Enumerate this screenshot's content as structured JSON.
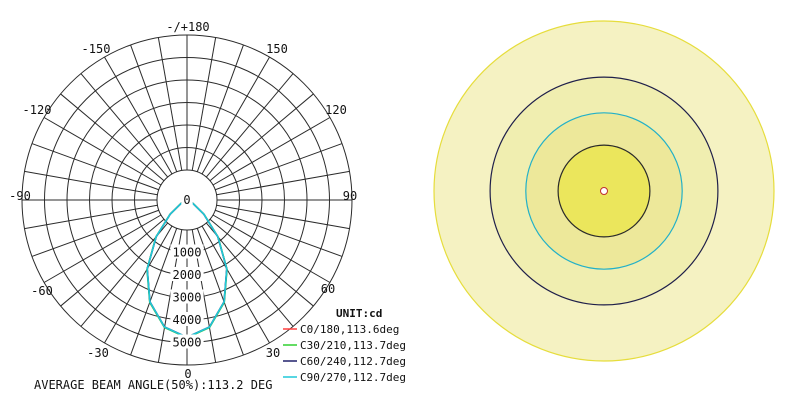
{
  "chart_data": [
    {
      "type": "polar-line",
      "title": "",
      "unit_label": "UNIT:cd",
      "angle_ticks": [
        "-/+180",
        "-150",
        "150",
        "-120",
        "120",
        "-90",
        "90",
        "-60",
        "60",
        "-30",
        "30",
        "0"
      ],
      "radial_ticks": [
        "0",
        "1000",
        "2000",
        "3000",
        "4000",
        "5000"
      ],
      "r_max": 6000,
      "grid": true,
      "legend_position": "bottom-right",
      "series": [
        {
          "name": "C0/180,113.6deg",
          "color": "#ff4040",
          "angles": [
            -60,
            -50,
            -40,
            -30,
            -20,
            -10,
            0,
            10,
            20,
            30,
            40,
            50,
            60
          ],
          "values": [
            250,
            800,
            1750,
            2900,
            3950,
            4700,
            5000,
            4700,
            3950,
            2900,
            1750,
            800,
            250
          ]
        },
        {
          "name": "C30/210,113.7deg",
          "color": "#30d030",
          "angles": [
            -60,
            -50,
            -40,
            -30,
            -20,
            -10,
            0,
            10,
            20,
            30,
            40,
            50,
            60
          ],
          "values": [
            260,
            810,
            1760,
            2910,
            3960,
            4710,
            5010,
            4710,
            3960,
            2910,
            1760,
            810,
            260
          ]
        },
        {
          "name": "C60/240,112.7deg",
          "color": "#20206a",
          "angles": [
            -60,
            -50,
            -40,
            -30,
            -20,
            -10,
            0,
            10,
            20,
            30,
            40,
            50,
            60
          ],
          "values": [
            240,
            790,
            1740,
            2890,
            3940,
            4690,
            4990,
            4690,
            3940,
            2890,
            1740,
            790,
            240
          ]
        },
        {
          "name": "C90/270,112.7deg",
          "color": "#20c8d8",
          "angles": [
            -60,
            -50,
            -40,
            -30,
            -20,
            -10,
            0,
            10,
            20,
            30,
            40,
            50,
            60
          ],
          "values": [
            245,
            795,
            1745,
            2895,
            3945,
            4695,
            4995,
            4695,
            3945,
            2895,
            1745,
            795,
            245
          ]
        }
      ],
      "footer": "AVERAGE BEAM ANGLE(50%):113.2 DEG"
    },
    {
      "type": "illuminance-rings",
      "title": "",
      "rings": [
        {
          "level": 1.0,
          "fill": "#f5f2c2",
          "stroke": "#e6dd3c"
        },
        {
          "level": 0.67,
          "fill": "#f0eeb0",
          "stroke": "#1f1f4a"
        },
        {
          "level": 0.46,
          "fill": "#ede89a",
          "stroke": "#22b0c8"
        },
        {
          "level": 0.27,
          "fill": "#ebe65c",
          "stroke": "#2a2a2a"
        }
      ],
      "center_marker": {
        "fill": "#ffffff",
        "stroke": "#c03030"
      }
    }
  ]
}
